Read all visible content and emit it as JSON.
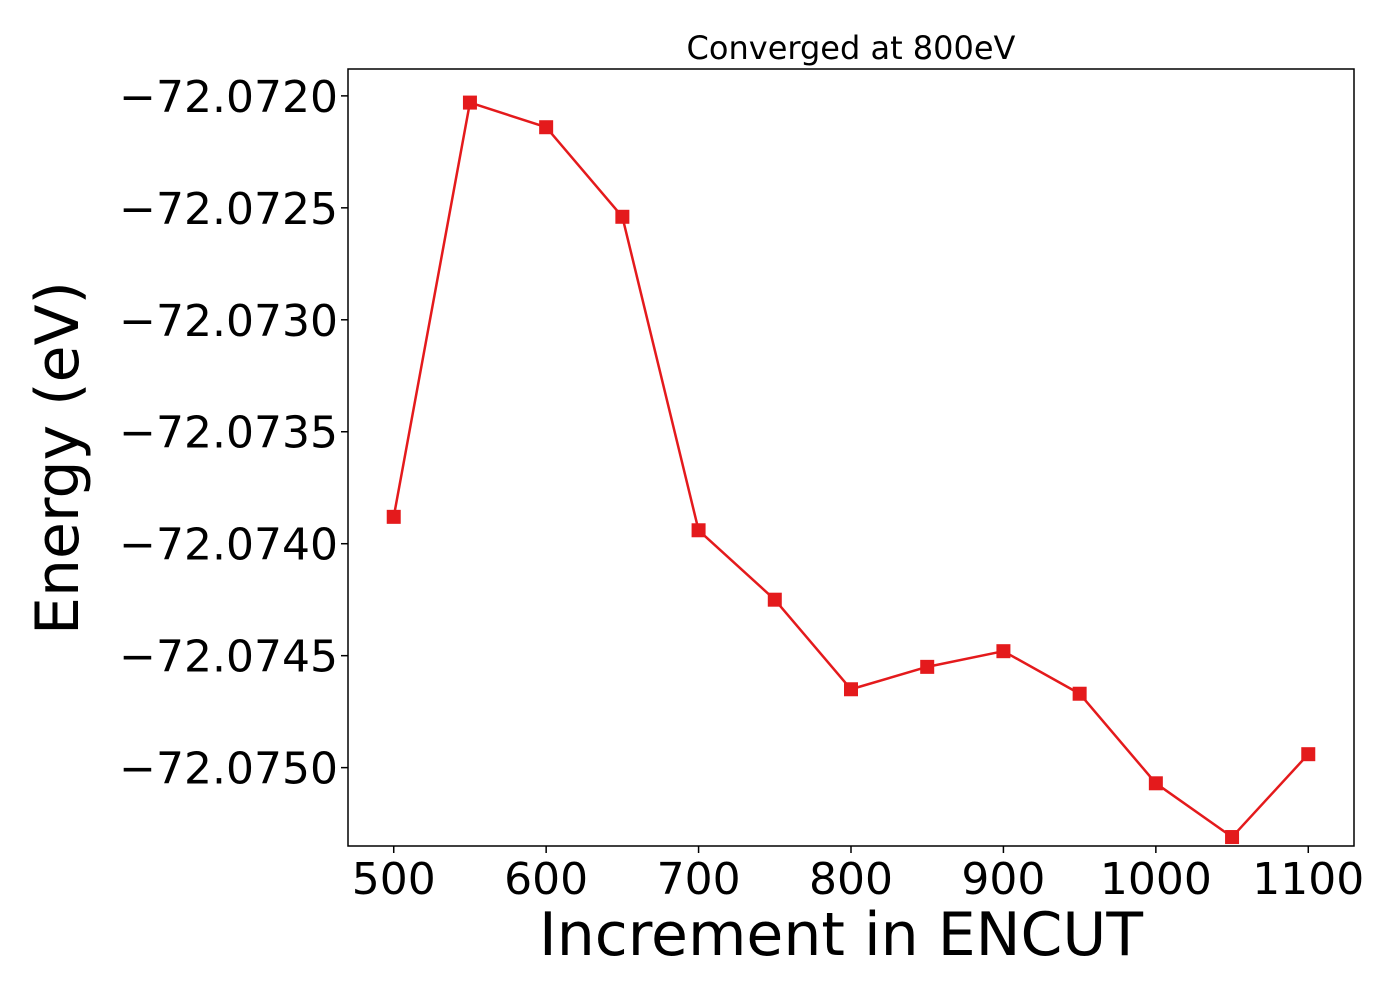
{
  "chart_data": {
    "type": "line",
    "title": "Converged at 800eV",
    "xlabel": "Increment in ENCUT",
    "ylabel": "Energy (eV)",
    "xlim": [
      470,
      1130
    ],
    "ylim": [
      -72.07535,
      -72.07188
    ],
    "xticks": [
      500,
      600,
      700,
      800,
      900,
      1000,
      1100
    ],
    "xtick_labels": [
      "500",
      "600",
      "700",
      "800",
      "900",
      "1000",
      "1100"
    ],
    "yticks": [
      -72.072,
      -72.0725,
      -72.073,
      -72.0735,
      -72.074,
      -72.0745,
      -72.075
    ],
    "ytick_labels": [
      "−72.0720",
      "−72.0725",
      "−72.0730",
      "−72.0735",
      "−72.0740",
      "−72.0745",
      "−72.0750"
    ],
    "grid": false,
    "legend": "none",
    "series": [
      {
        "color": "#e41a1c",
        "marker": "square",
        "x": [
          500,
          550,
          600,
          650,
          700,
          750,
          800,
          850,
          900,
          950,
          1000,
          1050,
          1100
        ],
        "y": [
          -72.07388,
          -72.07203,
          -72.07214,
          -72.07254,
          -72.07394,
          -72.07425,
          -72.07465,
          -72.07455,
          -72.07448,
          -72.07467,
          -72.07507,
          -72.07531,
          -72.07494
        ]
      }
    ]
  }
}
